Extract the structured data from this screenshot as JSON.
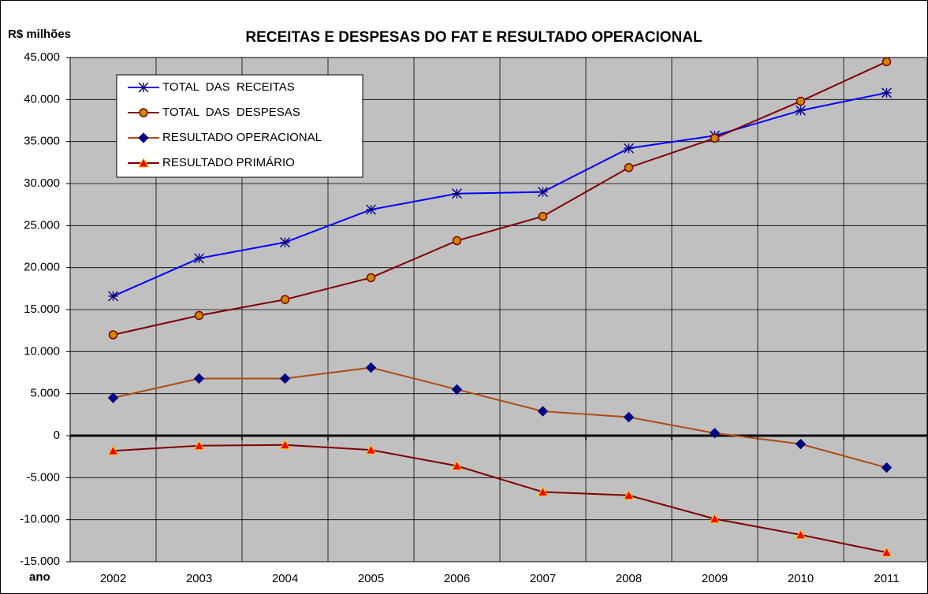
{
  "chart_data": {
    "type": "line",
    "title": "RECEITAS E DESPESAS DO FAT E RESULTADO OPERACIONAL",
    "y_label": "R$ milhões",
    "x_label": "ano",
    "categories": [
      "2002",
      "2003",
      "2004",
      "2005",
      "2006",
      "2007",
      "2008",
      "2009",
      "2010",
      "2011"
    ],
    "series": [
      {
        "name": "TOTAL  DAS  RECEITAS",
        "color": "#0000ff",
        "marker": "asterisk",
        "marker_color": "#0000ff",
        "marker_edge": "#000080",
        "values": [
          16600,
          21100,
          23000,
          26900,
          28800,
          29000,
          34200,
          35700,
          38700,
          40800
        ]
      },
      {
        "name": "TOTAL  DAS  DESPESAS",
        "color": "#800000",
        "marker": "circle",
        "marker_color": "#cc8800",
        "marker_edge": "#800000",
        "values": [
          12000,
          14300,
          16200,
          18800,
          23200,
          26100,
          31900,
          35400,
          39800,
          44500
        ]
      },
      {
        "name": "RESULTADO OPERACIONAL",
        "color": "#b04a10",
        "marker": "diamond",
        "marker_color": "#000080",
        "marker_edge": "#000080",
        "values": [
          4500,
          6800,
          6800,
          8100,
          5500,
          2900,
          2200,
          300,
          -1000,
          -3800
        ]
      },
      {
        "name": "RESULTADO PRIMÁRIO",
        "color": "#800000",
        "marker": "triangle",
        "marker_color": "#ff0000",
        "marker_edge": "#ffcc00",
        "values": [
          -1800,
          -1200,
          -1100,
          -1700,
          -3600,
          -6700,
          -7100,
          -9900,
          -11800,
          -13900
        ]
      }
    ],
    "ylim": [
      -15000,
      45000
    ],
    "yticks": [
      {
        "value": -15000,
        "label": "-15.000"
      },
      {
        "value": -10000,
        "label": "-10.000"
      },
      {
        "value": -5000,
        "label": "-5.000"
      },
      0,
      {
        "value": 5000,
        "label": "5.000"
      },
      {
        "value": 10000,
        "label": "10.000"
      },
      {
        "value": 15000,
        "label": "15.000"
      },
      {
        "value": 20000,
        "label": "20.000"
      },
      {
        "value": 25000,
        "label": "25.000"
      },
      {
        "value": 30000,
        "label": "30.000"
      },
      {
        "value": 35000,
        "label": "35.000"
      },
      {
        "value": 40000,
        "label": "40.000"
      },
      {
        "value": 45000,
        "label": "45.000"
      }
    ],
    "grid": true,
    "legend": "upper left",
    "plot_color": "#c0c0c0"
  }
}
